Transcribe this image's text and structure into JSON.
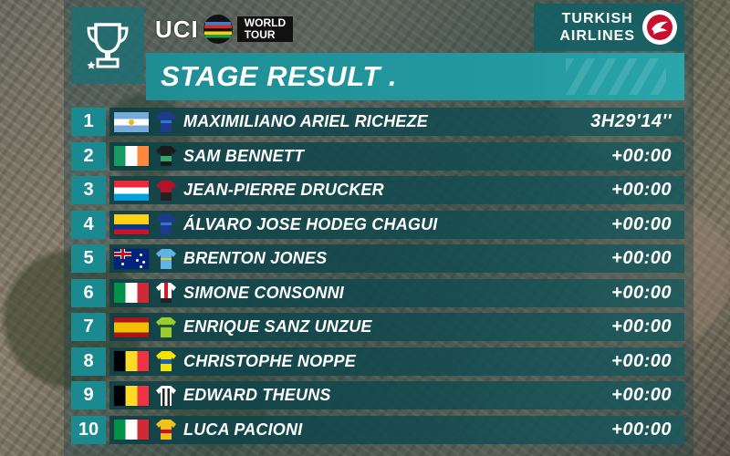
{
  "header": {
    "uci_text": "UCI",
    "world_tour_line1": "WORLD",
    "world_tour_line2": "TOUR",
    "sponsor_line1": "TURKISH",
    "sponsor_line2": "AIRLINES",
    "title": "STAGE RESULT ."
  },
  "colors": {
    "accent_teal": "#1a8a90",
    "row_bg": "#0e4146",
    "text": "#ffffff"
  },
  "results": [
    {
      "rank": "1",
      "flag": "argentina-flag",
      "jersey": "deceuninck-jersey",
      "name": "MAXIMILIANO ARIEL RICHEZE",
      "time": "3H29'14''"
    },
    {
      "rank": "2",
      "flag": "ireland-flag",
      "jersey": "bora-jersey",
      "name": "SAM BENNETT",
      "time": "+00:00"
    },
    {
      "rank": "3",
      "flag": "luxembourg-flag",
      "jersey": "wanty-jersey",
      "name": "JEAN-PIERRE DRUCKER",
      "time": "+00:00"
    },
    {
      "rank": "4",
      "flag": "colombia-flag",
      "jersey": "deceuninck-jersey",
      "name": "ÁLVARO JOSE HODEG CHAGUI",
      "time": "+00:00"
    },
    {
      "rank": "5",
      "flag": "australia-flag",
      "jersey": "astana-jersey",
      "name": "BRENTON JONES",
      "time": "+00:00"
    },
    {
      "rank": "6",
      "flag": "italy-flag",
      "jersey": "uae-jersey",
      "name": "SIMONE CONSONNI",
      "time": "+00:00"
    },
    {
      "rank": "7",
      "flag": "spain-flag",
      "jersey": "cannondale-jersey",
      "name": "ENRIQUE SANZ UNZUE",
      "time": "+00:00"
    },
    {
      "rank": "8",
      "flag": "belgium-flag",
      "jersey": "sport-vlaanderen-jersey",
      "name": "CHRISTOPHE NOPPE",
      "time": "+00:00"
    },
    {
      "rank": "9",
      "flag": "belgium-flag",
      "jersey": "trek-jersey",
      "name": "EDWARD THEUNS",
      "time": "+00:00"
    },
    {
      "rank": "10",
      "flag": "italy-flag",
      "jersey": "lotto-jersey",
      "name": "LUCA PACIONI",
      "time": "+00:00"
    }
  ]
}
